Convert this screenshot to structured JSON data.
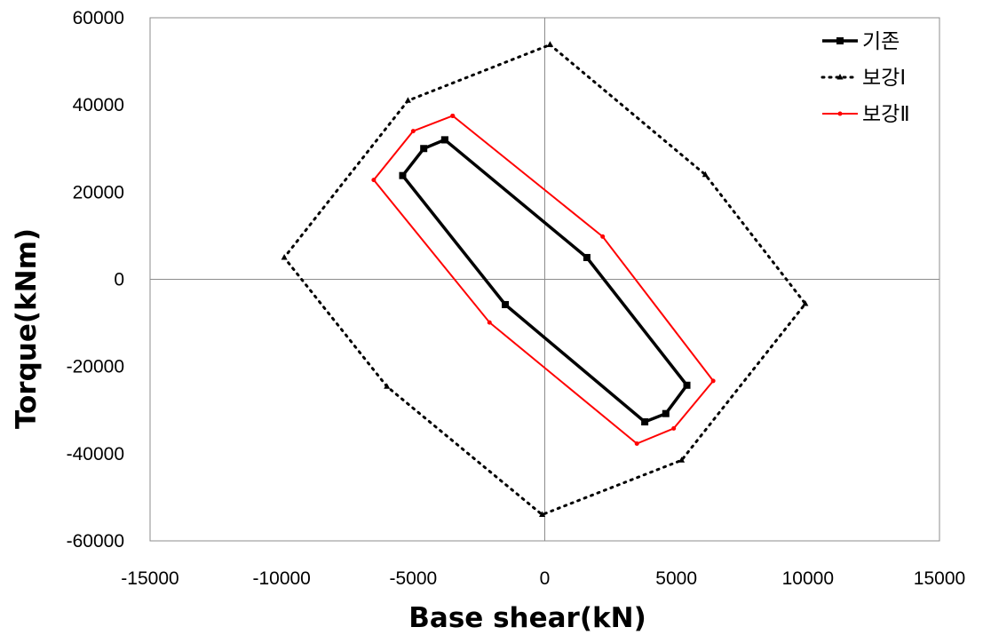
{
  "chart_data": {
    "type": "scatter",
    "title": "",
    "xlabel": "Base shear(kN)",
    "ylabel": "Torque(kNm)",
    "xlim": [
      -15000,
      15000
    ],
    "ylim": [
      -60000,
      60000
    ],
    "x_ticks": [
      -15000,
      -10000,
      -5000,
      0,
      5000,
      10000,
      15000
    ],
    "y_ticks": [
      -60000,
      -40000,
      -20000,
      0,
      20000,
      40000,
      60000
    ],
    "zero_lines": true,
    "grid": false,
    "legend_position": "top-right",
    "series": [
      {
        "name": "기존",
        "color": "#000000",
        "line_style": "solid",
        "marker": "square",
        "points": [
          [
            -3800,
            32000
          ],
          [
            -4600,
            30000
          ],
          [
            -5400,
            23800
          ],
          [
            -1500,
            -5800
          ],
          [
            3800,
            -32700
          ],
          [
            4600,
            -30800
          ],
          [
            5400,
            -24300
          ],
          [
            1600,
            5000
          ],
          [
            -3800,
            32000
          ]
        ]
      },
      {
        "name": "보강Ⅰ",
        "color": "#000000",
        "line_style": "dotted",
        "marker": "triangle",
        "points": [
          [
            200,
            53800
          ],
          [
            6100,
            24000
          ],
          [
            9900,
            -5600
          ],
          [
            5200,
            -41500
          ],
          [
            -100,
            -54000
          ],
          [
            -6000,
            -24600
          ],
          [
            -9900,
            5000
          ],
          [
            -5200,
            41000
          ],
          [
            200,
            53800
          ]
        ]
      },
      {
        "name": "보강Ⅱ",
        "color": "#ff0000",
        "line_style": "solid",
        "marker": "dot",
        "points": [
          [
            -3500,
            37500
          ],
          [
            -5000,
            34000
          ],
          [
            -6500,
            22800
          ],
          [
            -2100,
            -9900
          ],
          [
            3500,
            -37700
          ],
          [
            4900,
            -34200
          ],
          [
            6400,
            -23300
          ],
          [
            2200,
            9800
          ],
          [
            -3500,
            37500
          ]
        ]
      }
    ]
  }
}
